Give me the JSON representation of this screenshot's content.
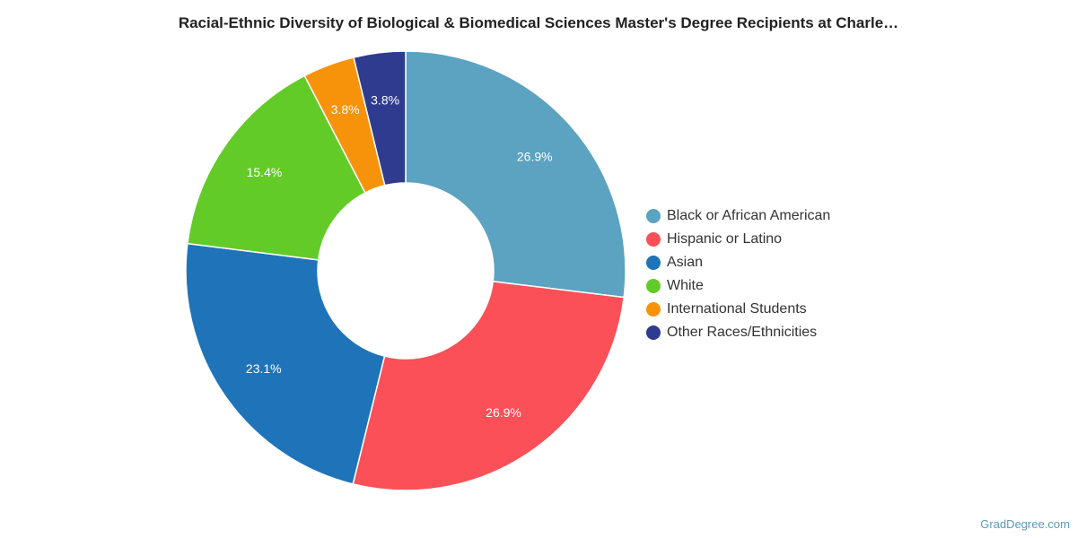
{
  "chart_data": {
    "type": "pie",
    "title": "Racial-Ethnic Diversity of Biological & Biomedical Sciences Master's Degree Recipients at Charle…",
    "donut": true,
    "legend_position": "right",
    "slices": [
      {
        "label": "Black or African American",
        "value": 26.9,
        "display": "26.9%",
        "color": "#5ba3c0"
      },
      {
        "label": "Hispanic or Latino",
        "value": 26.9,
        "display": "26.9%",
        "color": "#fb5058"
      },
      {
        "label": "Asian",
        "value": 23.1,
        "display": "23.1%",
        "color": "#1f74b9"
      },
      {
        "label": "White",
        "value": 15.4,
        "display": "15.4%",
        "color": "#63cb27"
      },
      {
        "label": "International Students",
        "value": 3.8,
        "display": "3.8%",
        "color": "#f7930b"
      },
      {
        "label": "Other Races/Ethnicities",
        "value": 3.8,
        "display": "3.8%",
        "color": "#2f3b8f"
      }
    ]
  },
  "footer": {
    "source": "GradDegree.com"
  }
}
